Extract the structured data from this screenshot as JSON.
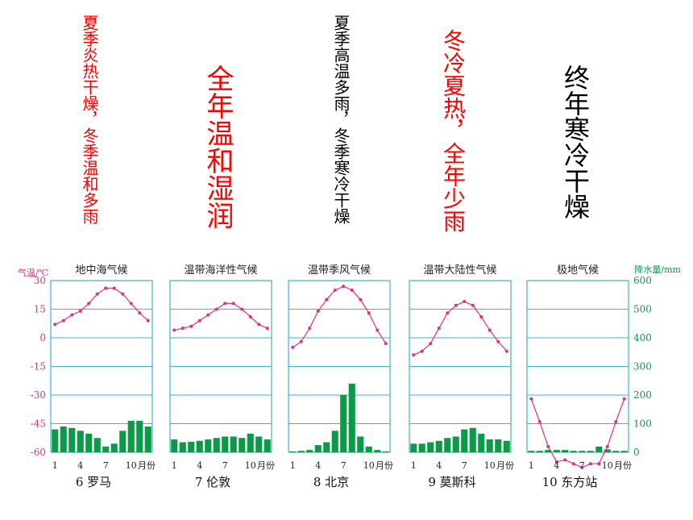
{
  "descriptions": [
    {
      "text": "夏季炎热干燥，冬季温和多雨",
      "color": "#ff0000"
    },
    {
      "text": "全年温和湿润",
      "color": "#ff0000"
    },
    {
      "text": "夏季高温多雨，冬季寒冷干燥",
      "color": "#000000"
    },
    {
      "text": "冬冷夏热，全年少雨",
      "color": "#ff0000"
    },
    {
      "text": "终年寒冷干燥",
      "color": "#000000"
    }
  ],
  "axis": {
    "temp_label": "气温/℃",
    "precip_label": "降水量/mm",
    "month_unit": "月份",
    "temp_ticks": [
      30,
      15,
      0,
      -15,
      -30,
      -45,
      -60
    ],
    "precip_ticks": [
      600,
      500,
      400,
      300,
      200,
      100,
      0
    ],
    "month_ticks": [
      1,
      4,
      7,
      10
    ]
  },
  "colors": {
    "frame": "#3fb3c8",
    "temp": "#e0307e",
    "precip": "#0a9a48",
    "axis_text": "#e0307e",
    "precip_text": "#0a9a48"
  },
  "chart_data": [
    {
      "type": "bar+line",
      "title": "地中海气候",
      "caption": "6 罗马",
      "ylim_temp": [
        -60,
        30
      ],
      "ylim_precip": [
        0,
        600
      ],
      "temperature": [
        7,
        9,
        12,
        14,
        18,
        23,
        26,
        26,
        23,
        18,
        13,
        9
      ],
      "precipitation": [
        80,
        90,
        85,
        75,
        65,
        50,
        20,
        30,
        75,
        110,
        110,
        90
      ]
    },
    {
      "type": "bar+line",
      "title": "温带海洋性气候",
      "caption": "7 伦敦",
      "ylim_temp": [
        -60,
        30
      ],
      "ylim_precip": [
        0,
        600
      ],
      "temperature": [
        4,
        5,
        6,
        9,
        12,
        15,
        18,
        18,
        15,
        11,
        7,
        5
      ],
      "precipitation": [
        45,
        35,
        37,
        40,
        45,
        50,
        55,
        55,
        50,
        65,
        55,
        45
      ]
    },
    {
      "type": "bar+line",
      "title": "温带季风气候",
      "caption": "8 北京",
      "ylim_temp": [
        -60,
        30
      ],
      "ylim_precip": [
        0,
        600
      ],
      "temperature": [
        -5,
        -2,
        5,
        14,
        20,
        25,
        27,
        25,
        20,
        13,
        4,
        -3
      ],
      "precipitation": [
        3,
        5,
        8,
        25,
        35,
        75,
        200,
        240,
        55,
        20,
        8,
        3
      ]
    },
    {
      "type": "bar+line",
      "title": "温带大陆性气候",
      "caption": "9 莫斯科",
      "ylim_temp": [
        -60,
        30
      ],
      "ylim_precip": [
        0,
        600
      ],
      "temperature": [
        -9,
        -7,
        -3,
        5,
        13,
        17,
        19,
        17,
        11,
        4,
        -2,
        -7
      ],
      "precipitation": [
        30,
        30,
        35,
        40,
        50,
        55,
        80,
        85,
        65,
        45,
        45,
        40
      ]
    },
    {
      "type": "bar+line",
      "title": "极地气候",
      "caption": "10 东方站",
      "ylim_temp": [
        -60,
        30
      ],
      "ylim_precip": [
        0,
        600
      ],
      "temperature": [
        -32,
        -44,
        -57,
        -65,
        -64,
        -66,
        -68,
        -66,
        -66,
        -57,
        -44,
        -32
      ],
      "precipitation": [
        5,
        5,
        8,
        8,
        8,
        5,
        5,
        5,
        20,
        10,
        5,
        5
      ]
    }
  ]
}
